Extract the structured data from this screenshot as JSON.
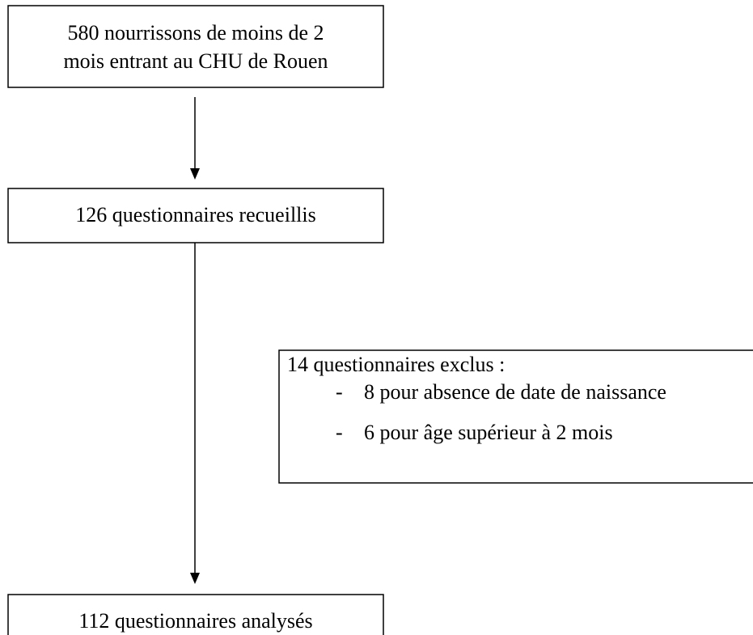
{
  "nodes": [
    {
      "label": [
        "580 nourrissons de moins de 2",
        "mois entrant au CHU de Rouen"
      ]
    },
    {
      "label": "126 questionnaires recueillis"
    },
    {
      "label": "112 questionnaires analysés"
    }
  ],
  "exclusion": {
    "title": "14 questionnaires exclus :",
    "items": [
      {
        "bullet": "-",
        "text": "8 pour absence de date de naissance"
      },
      {
        "bullet": "-",
        "text": "6 pour âge supérieur à 2 mois"
      }
    ]
  }
}
